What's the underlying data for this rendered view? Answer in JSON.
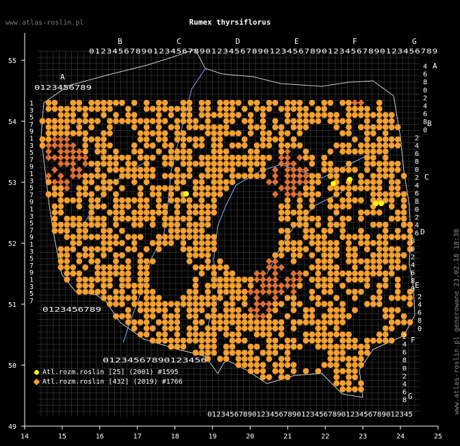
{
  "site_label": "www.atlas-roslin.pl",
  "title": "Rumex thyrsiflorus",
  "side_note": "www.atlas-roslin.pl generowane 23.02.18 18:38",
  "x_axis_ticks": [
    "14",
    "15",
    "16",
    "17",
    "18",
    "19",
    "20",
    "21",
    "22",
    "23",
    "24",
    "25"
  ],
  "y_axis_ticks": [
    "55",
    "54",
    "53",
    "52",
    "51",
    "50",
    "49"
  ],
  "top_row_letters": [
    "B",
    "C",
    "D",
    "E",
    "F",
    "G"
  ],
  "top_row_digits": "0123456789012345678901234567890123456789012345678901234567890123456789012345678",
  "bottom_row_digits": "0123456789012345678901234567890123456789012345",
  "bottom_left_digits": "0123456789012345678901234567890123456789",
  "left_top_letter": "A",
  "left_top_digits": "0123456789",
  "left_bottom_digits": "0123456789",
  "left_column_digits": [
    "1",
    "3",
    "5",
    "7",
    "9",
    "1",
    "3",
    "5",
    "7",
    "9",
    "1",
    "3",
    "5",
    "7",
    "9",
    "1",
    "3",
    "5",
    "7",
    "9",
    "1",
    "3",
    "5",
    "7",
    "9",
    "1",
    "3",
    "5",
    "7"
  ],
  "right_column_digits": [
    "4",
    "6",
    "8",
    "0",
    "2",
    "4",
    "6",
    "8",
    "0",
    "2",
    "4",
    "6",
    "8",
    "0",
    "2",
    "4",
    "6",
    "8",
    "0",
    "2",
    "4",
    "6",
    "8",
    "0",
    "2",
    "4",
    "6",
    "8",
    "0",
    "2",
    "4",
    "6",
    "8",
    "0",
    "2",
    "4",
    "6",
    "8",
    "0",
    "2",
    "4",
    "6",
    "8"
  ],
  "right_column_letters": [
    "A",
    "B",
    "C",
    "D",
    "E",
    "F",
    "G"
  ],
  "legend": [
    {
      "label": "Atl.rozm.roslin [25] (2001) #1595",
      "color": "#ffff00"
    },
    {
      "label": "Atl.rozm.roslin [432] (2019) #1766",
      "color": "#f5a030"
    }
  ],
  "colors": {
    "background": "#000000",
    "grid": "#707070",
    "river": "#7fb0ff",
    "border": "#d0d0d0",
    "record_old": "#ffff00",
    "record_new": "#f5a030",
    "record_dense": "#e07030"
  }
}
